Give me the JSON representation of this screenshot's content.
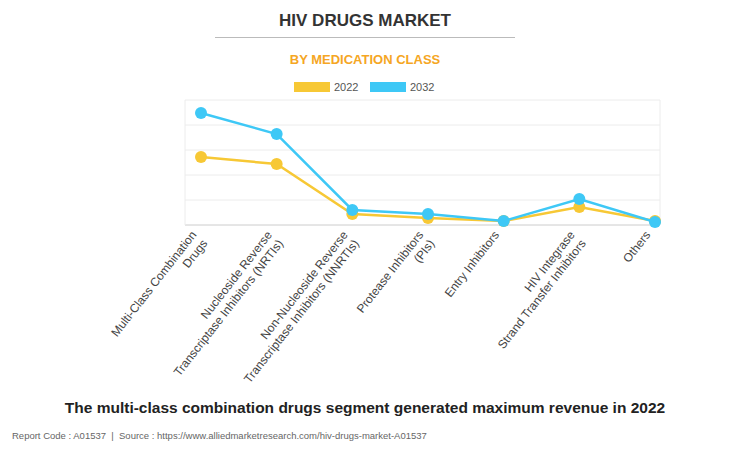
{
  "chart_data": {
    "type": "line",
    "title": "HIV DRUGS MARKET",
    "subtitle": "BY MEDICATION CLASS",
    "categories": [
      "Multi-Class Combination\nDrugs",
      "Nucleoside Reverse\nTranscriptase Inhibitors (NRTIs)",
      "Non-Nucleoside Reverse\nTranscriptase Inhibitors (NNRTIs)",
      "Protease Inhibitors\n(PIs)",
      "Entry Inhibitors",
      "HIV Integrase\nStrand Transfer Inhibitors",
      "Others"
    ],
    "series": [
      {
        "name": "2022",
        "color": "#f7c835",
        "marker": "circle",
        "values": [
          2.72,
          2.44,
          0.44,
          0.28,
          0.16,
          0.72,
          0.16
        ]
      },
      {
        "name": "2032",
        "color": "#3ec8f6",
        "marker": "circle",
        "values": [
          4.48,
          3.64,
          0.6,
          0.44,
          0.16,
          1.04,
          0.12
        ]
      }
    ],
    "ylim": [
      0,
      5
    ],
    "yticks": [
      0,
      1,
      2,
      3,
      4,
      5
    ],
    "grid": true,
    "tick_labels": "x",
    "legend": "top",
    "annotations": [
      "The multi-class combination drugs segment generated maximum revenue in 2022",
      "Report Code : A01537  |  Source : https://www.alliedmarketresearch.com/hiv-drugs-market-A01537"
    ]
  }
}
